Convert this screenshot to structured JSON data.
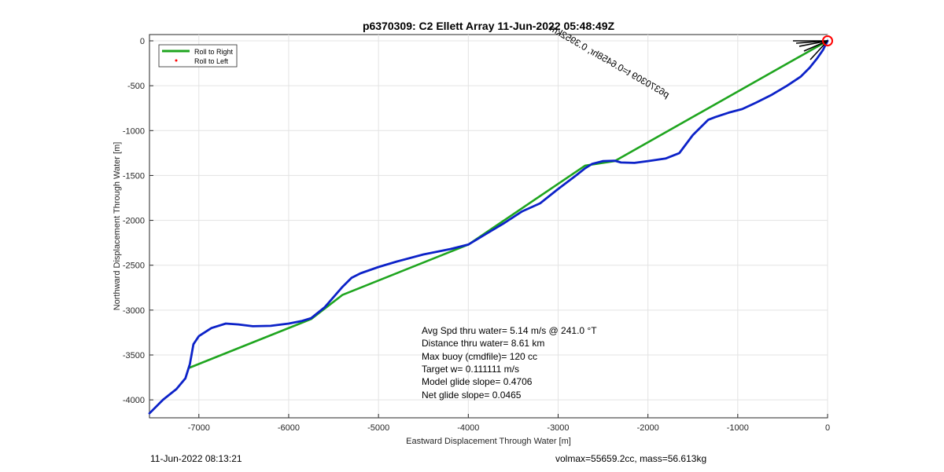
{
  "chart_data": {
    "type": "line",
    "title": "p6370309: C2 Ellett Array 11-Jun-2022 05:48:49Z",
    "xlabel": "Eastward Displacement Through Water [m]",
    "ylabel": "Northward Displacement Through Water [m]",
    "xlim": [
      -7550,
      0
    ],
    "ylim": [
      -4200,
      70
    ],
    "xticks": [
      -7000,
      -6000,
      -5000,
      -4000,
      -3000,
      -2000,
      -1000,
      0
    ],
    "yticks": [
      0,
      -500,
      -1000,
      -1500,
      -2000,
      -2500,
      -3000,
      -3500,
      -4000
    ],
    "grid": true,
    "legend": {
      "placement": "top-left",
      "entries": [
        {
          "label": "Roll to Right",
          "color": "#00a000",
          "marker": "line"
        },
        {
          "label": "Roll to Left",
          "color": "#ff0000",
          "marker": "dot"
        }
      ]
    },
    "series": [
      {
        "name": "Roll to Right",
        "color": "#1fa51f",
        "x": [
          0,
          -2370,
          -2700,
          -4000,
          -5400,
          -5750,
          -7100
        ],
        "y": [
          0,
          -1340,
          -1390,
          -2270,
          -2830,
          -3100,
          -3640
        ]
      },
      {
        "color": "#0c22c8",
        "x": [
          0,
          -50,
          -120,
          -200,
          -300,
          -450,
          -620,
          -800,
          -950,
          -1100,
          -1250,
          -1330,
          -1500,
          -1650,
          -1800,
          -2000,
          -2150,
          -2300,
          -2370,
          -2500,
          -2620,
          -2700,
          -2800,
          -3000,
          -3200,
          -3400,
          -3600,
          -3800,
          -4000,
          -4200,
          -4500,
          -4800,
          -5000,
          -5200,
          -5300,
          -5400,
          -5600,
          -5750,
          -5850,
          -6000,
          -6200,
          -6400,
          -6560,
          -6700,
          -6860,
          -7000,
          -7060,
          -7100,
          -7150,
          -7250,
          -7400,
          -7550
        ],
        "y": [
          0,
          -100,
          -200,
          -300,
          -400,
          -500,
          -600,
          -690,
          -760,
          -800,
          -850,
          -880,
          -1050,
          -1250,
          -1310,
          -1340,
          -1360,
          -1355,
          -1335,
          -1340,
          -1370,
          -1420,
          -1500,
          -1650,
          -1810,
          -1900,
          -2030,
          -2150,
          -2270,
          -2320,
          -2380,
          -2460,
          -2520,
          -2590,
          -2640,
          -2740,
          -2970,
          -3090,
          -3120,
          -3150,
          -3175,
          -3180,
          -3160,
          -3150,
          -3200,
          -3290,
          -3380,
          -3600,
          -3760,
          -3880,
          -4000,
          -4150
        ]
      }
    ],
    "start_marker": {
      "x": 0,
      "y": 0,
      "color": "#ff0000"
    },
    "annotations": {
      "rotated_text": "p6370309 t=0.6458hr, 0.3952km",
      "stats": [
        "Avg Spd thru water=  5.14 m/s @ 241.0 °T",
        "Distance thru water=  8.61 km",
        "Max buoy (cmdfile)= 120 cc",
        "Target w= 0.111111 m/s",
        "Model glide slope= 0.4706",
        "Net glide slope= 0.0465"
      ]
    }
  },
  "footer": {
    "left": "11-Jun-2022 08:13:21",
    "right": "volmax=55659.2cc, mass=56.613kg"
  }
}
